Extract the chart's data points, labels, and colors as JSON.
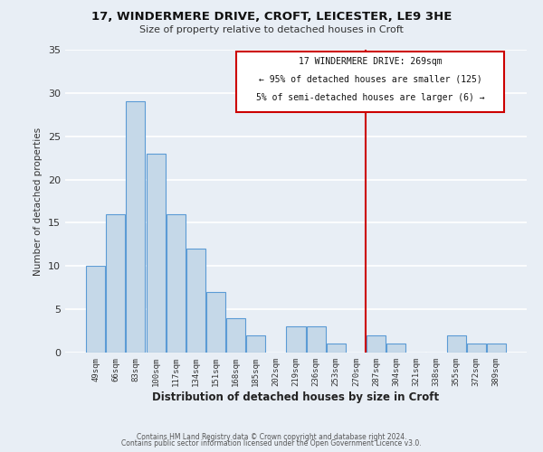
{
  "title1": "17, WINDERMERE DRIVE, CROFT, LEICESTER, LE9 3HE",
  "title2": "Size of property relative to detached houses in Croft",
  "xlabel": "Distribution of detached houses by size in Croft",
  "ylabel": "Number of detached properties",
  "bar_labels": [
    "49sqm",
    "66sqm",
    "83sqm",
    "100sqm",
    "117sqm",
    "134sqm",
    "151sqm",
    "168sqm",
    "185sqm",
    "202sqm",
    "219sqm",
    "236sqm",
    "253sqm",
    "270sqm",
    "287sqm",
    "304sqm",
    "321sqm",
    "338sqm",
    "355sqm",
    "372sqm",
    "389sqm"
  ],
  "bar_values": [
    10,
    16,
    29,
    23,
    16,
    12,
    7,
    4,
    2,
    0,
    3,
    3,
    1,
    0,
    2,
    1,
    0,
    0,
    2,
    1,
    1
  ],
  "bar_color": "#c5d8e8",
  "bar_edge_color": "#5b9bd5",
  "background_color": "#e8eef5",
  "grid_color": "#ffffff",
  "annotation_text_line1": "17 WINDERMERE DRIVE: 269sqm",
  "annotation_text_line2": "← 95% of detached houses are smaller (125)",
  "annotation_text_line3": "5% of semi-detached houses are larger (6) →",
  "annotation_border_color": "#cc0000",
  "ylim": [
    0,
    35
  ],
  "yticks": [
    0,
    5,
    10,
    15,
    20,
    25,
    30,
    35
  ],
  "footer1": "Contains HM Land Registry data © Crown copyright and database right 2024.",
  "footer2": "Contains public sector information licensed under the Open Government Licence v3.0."
}
